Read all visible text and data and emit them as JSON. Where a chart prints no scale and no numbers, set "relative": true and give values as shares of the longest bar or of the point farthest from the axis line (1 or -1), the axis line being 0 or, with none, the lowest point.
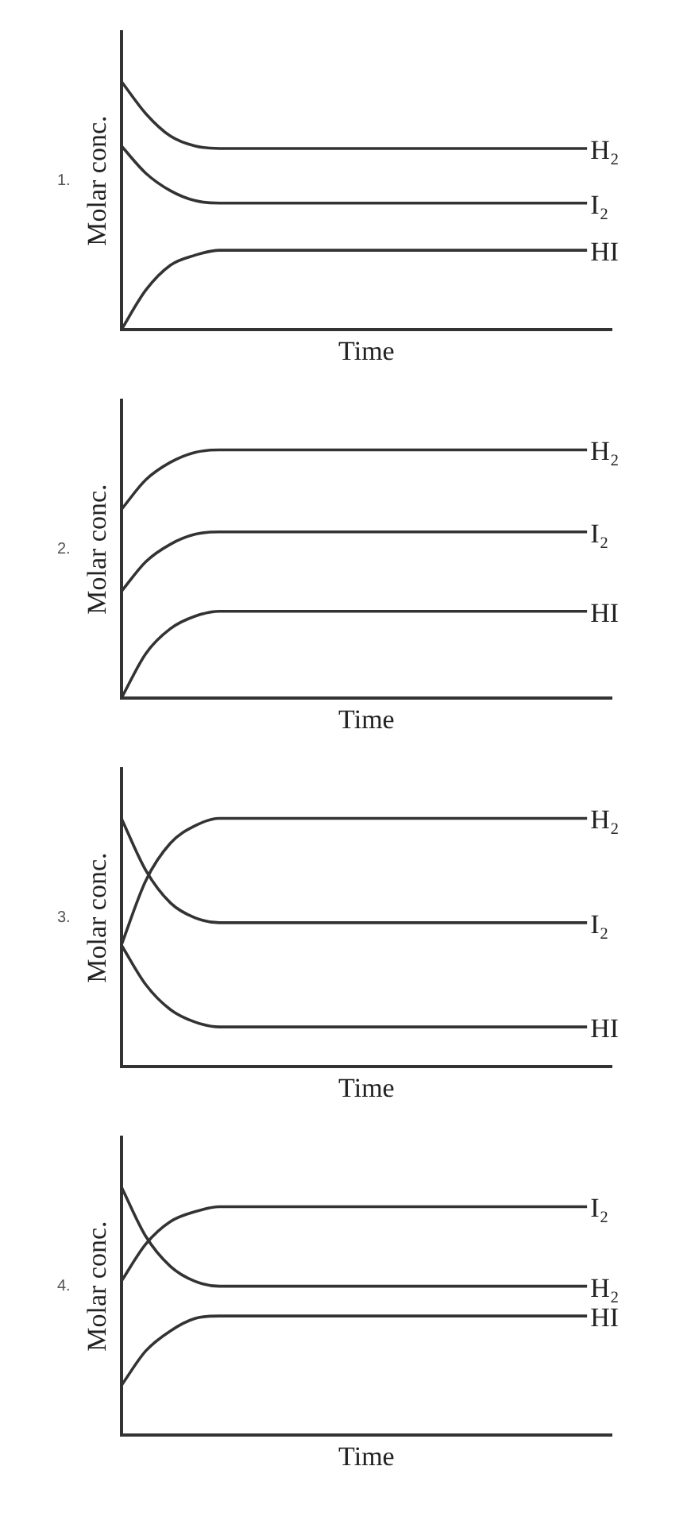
{
  "chart_data": [
    {
      "type": "line",
      "relative": true,
      "ylabel": "Molar conc.",
      "xlabel": "Time",
      "annotations": [
        "1."
      ],
      "line_style": "solid",
      "categories": [
        null,
        null,
        null,
        null,
        null,
        null,
        null,
        null,
        null,
        null,
        null,
        null,
        null,
        null,
        null,
        null,
        null,
        null,
        null,
        null,
        null
      ],
      "series": [
        {
          "name": "H₂",
          "color": "#333333",
          "values": [
            1,
            0.87,
            0.78,
            0.74,
            0.73,
            0.73,
            0.73,
            0.73,
            0.73,
            0.73,
            0.73,
            0.73,
            0.73,
            0.73,
            0.73,
            0.73,
            0.73,
            0.73,
            0.73,
            0.73,
            null
          ]
        },
        {
          "name": "I₂",
          "color": "#333333",
          "values": [
            0.74,
            0.63,
            0.56,
            0.52,
            0.51,
            0.51,
            0.51,
            0.51,
            0.51,
            0.51,
            0.51,
            0.51,
            0.51,
            0.51,
            0.51,
            0.51,
            0.51,
            0.51,
            0.51,
            0.51,
            null
          ]
        },
        {
          "name": "HI",
          "color": "#333333",
          "values": [
            0,
            0.16,
            0.26,
            0.3,
            0.32,
            0.32,
            0.32,
            0.32,
            0.32,
            0.32,
            0.32,
            0.32,
            0.32,
            0.32,
            0.32,
            0.32,
            0.32,
            0.32,
            0.32,
            0.32,
            null
          ]
        }
      ]
    },
    {
      "type": "line",
      "relative": true,
      "ylabel": "Molar conc.",
      "xlabel": "Time",
      "annotations": [
        "2."
      ],
      "line_style": "solid",
      "categories": [
        null,
        null,
        null,
        null,
        null,
        null,
        null,
        null,
        null,
        null,
        null,
        null,
        null,
        null,
        null,
        null,
        null,
        null,
        null,
        null,
        null
      ],
      "series": [
        {
          "name": "H₂",
          "color": "#333333",
          "values": [
            0.76,
            0.88,
            0.95,
            0.99,
            1,
            1,
            1,
            1,
            1,
            1,
            1,
            1,
            1,
            1,
            1,
            1,
            1,
            1,
            1,
            1,
            null
          ]
        },
        {
          "name": "I₂",
          "color": "#333333",
          "values": [
            0.43,
            0.55,
            0.62,
            0.66,
            0.67,
            0.67,
            0.67,
            0.67,
            0.67,
            0.67,
            0.67,
            0.67,
            0.67,
            0.67,
            0.67,
            0.67,
            0.67,
            0.67,
            0.67,
            0.67,
            null
          ]
        },
        {
          "name": "HI",
          "color": "#333333",
          "values": [
            0,
            0.18,
            0.28,
            0.33,
            0.35,
            0.35,
            0.35,
            0.35,
            0.35,
            0.35,
            0.35,
            0.35,
            0.35,
            0.35,
            0.35,
            0.35,
            0.35,
            0.35,
            0.35,
            0.35,
            null
          ]
        }
      ]
    },
    {
      "type": "line",
      "relative": true,
      "ylabel": "Molar conc.",
      "xlabel": "Time",
      "annotations": [
        "3."
      ],
      "line_style": "solid",
      "categories": [
        null,
        null,
        null,
        null,
        null,
        null,
        null,
        null,
        null,
        null,
        null,
        null,
        null,
        null,
        null,
        null,
        null,
        null,
        null,
        null,
        null
      ],
      "series": [
        {
          "name": "H₂",
          "color": "#333333",
          "values": [
            0.49,
            0.75,
            0.9,
            0.97,
            1,
            1,
            1,
            1,
            1,
            1,
            1,
            1,
            1,
            1,
            1,
            1,
            1,
            1,
            1,
            1,
            null
          ]
        },
        {
          "name": "I₂",
          "color": "#333333",
          "values": [
            1,
            0.79,
            0.66,
            0.6,
            0.58,
            0.58,
            0.58,
            0.58,
            0.58,
            0.58,
            0.58,
            0.58,
            0.58,
            0.58,
            0.58,
            0.58,
            0.58,
            0.58,
            0.58,
            0.58,
            null
          ]
        },
        {
          "name": "HI",
          "color": "#333333",
          "values": [
            0.49,
            0.33,
            0.23,
            0.18,
            0.16,
            0.16,
            0.16,
            0.16,
            0.16,
            0.16,
            0.16,
            0.16,
            0.16,
            0.16,
            0.16,
            0.16,
            0.16,
            0.16,
            0.16,
            0.16,
            null
          ]
        }
      ]
    },
    {
      "type": "line",
      "relative": true,
      "ylabel": "Molar conc.",
      "xlabel": "Time",
      "annotations": [
        "4."
      ],
      "line_style": "solid",
      "categories": [
        null,
        null,
        null,
        null,
        null,
        null,
        null,
        null,
        null,
        null,
        null,
        null,
        null,
        null,
        null,
        null,
        null,
        null,
        null,
        null,
        null
      ],
      "series": [
        {
          "name": "I₂",
          "color": "#333333",
          "values": [
            0.62,
            0.77,
            0.86,
            0.9,
            0.92,
            0.92,
            0.92,
            0.92,
            0.92,
            0.92,
            0.92,
            0.92,
            0.92,
            0.92,
            0.92,
            0.92,
            0.92,
            0.92,
            0.92,
            0.92,
            null
          ]
        },
        {
          "name": "H₂",
          "color": "#333333",
          "values": [
            1,
            0.8,
            0.68,
            0.62,
            0.6,
            0.6,
            0.6,
            0.6,
            0.6,
            0.6,
            0.6,
            0.6,
            0.6,
            0.6,
            0.6,
            0.6,
            0.6,
            0.6,
            0.6,
            0.6,
            null
          ]
        },
        {
          "name": "HI",
          "color": "#333333",
          "values": [
            0.2,
            0.34,
            0.42,
            0.47,
            0.48,
            0.48,
            0.48,
            0.48,
            0.48,
            0.48,
            0.48,
            0.48,
            0.48,
            0.48,
            0.48,
            0.48,
            0.48,
            0.48,
            0.48,
            0.48,
            null
          ]
        }
      ]
    }
  ]
}
